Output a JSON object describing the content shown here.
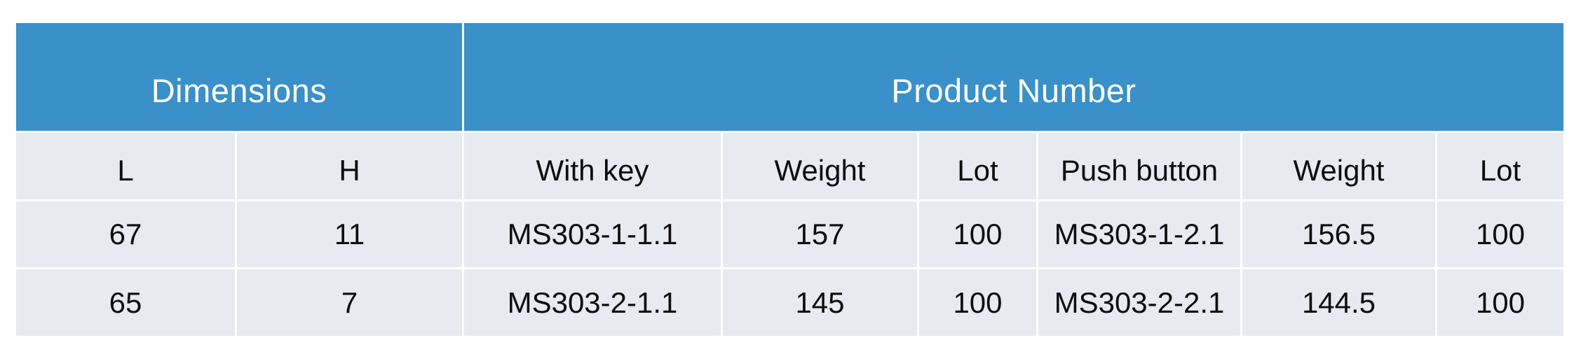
{
  "table": {
    "header_groups": [
      {
        "label": "Dimensions",
        "span": 2
      },
      {
        "label": "Product Number",
        "span": 6
      }
    ],
    "columns": [
      "L",
      "H",
      "With key",
      "Weight",
      "Lot",
      "Push button",
      "Weight",
      "Lot"
    ],
    "rows": [
      [
        "67",
        "11",
        "MS303-1-1.1",
        "157",
        "100",
        "MS303-1-2.1",
        "156.5",
        "100"
      ],
      [
        "65",
        "7",
        "MS303-2-1.1",
        "145",
        "100",
        "MS303-2-2.1",
        "144.5",
        "100"
      ]
    ]
  },
  "colors": {
    "header_background": "#3A90C8",
    "header_text": "#FFFFFF",
    "row_background": "#E8EAF2",
    "body_text": "#0D0D0D",
    "gridline": "#FFFFFF"
  }
}
